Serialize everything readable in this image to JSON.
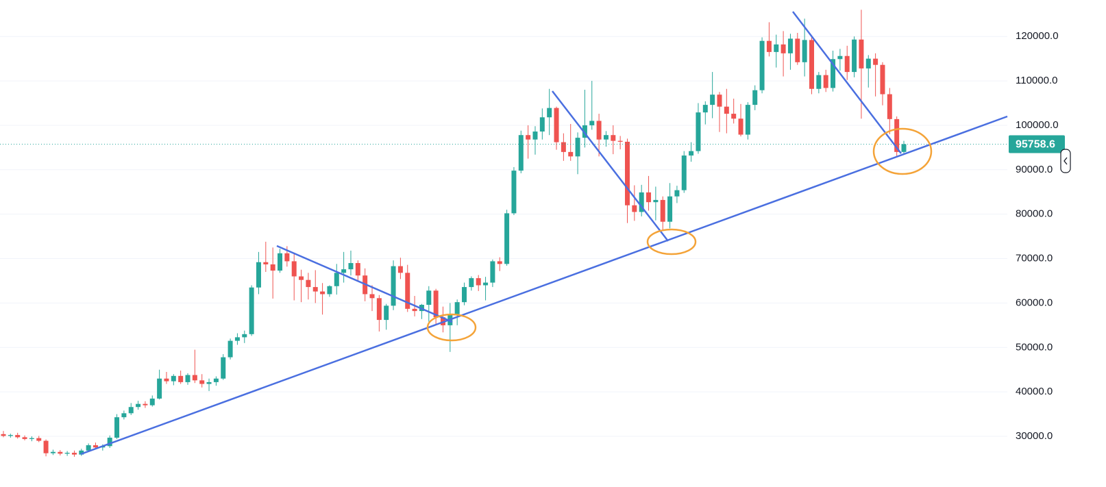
{
  "chart_data": {
    "type": "candlestick",
    "up_color": "#26a69a",
    "down_color": "#ef5350",
    "ylim": [
      18600,
      128200
    ],
    "yticks": [
      {
        "value": 30000,
        "label": "30000.0"
      },
      {
        "value": 40000,
        "label": "40000.0"
      },
      {
        "value": 50000,
        "label": "50000.0"
      },
      {
        "value": 60000,
        "label": "60000.0"
      },
      {
        "value": 70000,
        "label": "70000.0"
      },
      {
        "value": 80000,
        "label": "80000.0"
      },
      {
        "value": 90000,
        "label": "90000.0"
      },
      {
        "value": 100000,
        "label": "100000.0"
      },
      {
        "value": 110000,
        "label": "110000.0"
      },
      {
        "value": 120000,
        "label": "120000.0"
      }
    ],
    "grid": true,
    "ohlc": [
      [
        30500,
        31200,
        29800,
        30100
      ],
      [
        30100,
        30600,
        29700,
        30300
      ],
      [
        30300,
        30800,
        29500,
        29800
      ],
      [
        29800,
        30200,
        29100,
        29400
      ],
      [
        29400,
        30000,
        28900,
        29600
      ],
      [
        29600,
        30100,
        28700,
        29000
      ],
      [
        29000,
        29300,
        25500,
        26200
      ],
      [
        26200,
        27000,
        25800,
        26500
      ],
      [
        26500,
        26900,
        25700,
        26100
      ],
      [
        26100,
        26700,
        25600,
        26300
      ],
      [
        26300,
        26800,
        25400,
        25900
      ],
      [
        25900,
        27200,
        25600,
        26800
      ],
      [
        26800,
        28400,
        26500,
        28000
      ],
      [
        28000,
        28600,
        27200,
        27500
      ],
      [
        27500,
        28200,
        26800,
        27800
      ],
      [
        27800,
        30200,
        27400,
        29700
      ],
      [
        29700,
        35000,
        29400,
        34300
      ],
      [
        34300,
        35800,
        33800,
        35200
      ],
      [
        35200,
        37500,
        34800,
        36600
      ],
      [
        36600,
        38000,
        36000,
        37300
      ],
      [
        37300,
        37900,
        36400,
        37000
      ],
      [
        37000,
        39200,
        36700,
        38500
      ],
      [
        38500,
        45000,
        38300,
        43000
      ],
      [
        43000,
        44500,
        41800,
        42400
      ],
      [
        42400,
        44000,
        41500,
        43600
      ],
      [
        43600,
        44800,
        41800,
        42200
      ],
      [
        42200,
        44200,
        41600,
        43800
      ],
      [
        43800,
        49500,
        42000,
        42600
      ],
      [
        42600,
        44000,
        41000,
        41800
      ],
      [
        41800,
        43000,
        40200,
        42200
      ],
      [
        42200,
        43500,
        41400,
        43000
      ],
      [
        43000,
        48500,
        42700,
        47800
      ],
      [
        47800,
        52000,
        47300,
        51500
      ],
      [
        51500,
        53200,
        50600,
        52300
      ],
      [
        52300,
        53800,
        51000,
        53000
      ],
      [
        53000,
        64000,
        52600,
        63500
      ],
      [
        63500,
        71500,
        62000,
        69200
      ],
      [
        69200,
        73800,
        67000,
        68700
      ],
      [
        68700,
        72500,
        61000,
        67300
      ],
      [
        67300,
        72200,
        66800,
        71200
      ],
      [
        71200,
        72800,
        68200,
        69400
      ],
      [
        69400,
        71000,
        60600,
        66000
      ],
      [
        66000,
        67500,
        60200,
        65200
      ],
      [
        65200,
        66800,
        60800,
        63600
      ],
      [
        63600,
        67400,
        60000,
        62600
      ],
      [
        62600,
        64500,
        57400,
        62000
      ],
      [
        62000,
        64000,
        61400,
        63800
      ],
      [
        63800,
        68800,
        61900,
        66800
      ],
      [
        66800,
        71500,
        64600,
        67600
      ],
      [
        67600,
        71800,
        66200,
        69000
      ],
      [
        69000,
        69600,
        64800,
        66200
      ],
      [
        66200,
        67800,
        60400,
        62000
      ],
      [
        62000,
        64000,
        58200,
        61100
      ],
      [
        61100,
        61800,
        53600,
        56200
      ],
      [
        56200,
        59800,
        54000,
        59400
      ],
      [
        59400,
        69600,
        58400,
        68300
      ],
      [
        68300,
        70200,
        65400,
        66800
      ],
      [
        66800,
        68600,
        58000,
        58700
      ],
      [
        58700,
        61600,
        57000,
        58200
      ],
      [
        58200,
        59800,
        56400,
        59600
      ],
      [
        59600,
        63800,
        55800,
        62800
      ],
      [
        62800,
        63200,
        55300,
        56800
      ],
      [
        56800,
        59200,
        53400,
        55000
      ],
      [
        55000,
        60000,
        49000,
        57500
      ],
      [
        57500,
        60800,
        55000,
        60200
      ],
      [
        60200,
        64600,
        59500,
        63600
      ],
      [
        63600,
        66000,
        62800,
        65600
      ],
      [
        65600,
        66300,
        62700,
        64000
      ],
      [
        64000,
        65900,
        60600,
        64600
      ],
      [
        64600,
        69800,
        63600,
        69400
      ],
      [
        69400,
        70300,
        67200,
        68800
      ],
      [
        68800,
        81000,
        68400,
        80200
      ],
      [
        80200,
        90600,
        79800,
        89800
      ],
      [
        89800,
        98800,
        89200,
        97800
      ],
      [
        97800,
        100000,
        92500,
        96800
      ],
      [
        96800,
        99800,
        93400,
        98600
      ],
      [
        98600,
        103800,
        96800,
        101800
      ],
      [
        101800,
        108200,
        97800,
        103900
      ],
      [
        103900,
        104200,
        94500,
        96200
      ],
      [
        96200,
        98200,
        92000,
        94000
      ],
      [
        94000,
        100300,
        92000,
        93000
      ],
      [
        93000,
        98400,
        89000,
        97200
      ],
      [
        97200,
        108000,
        95000,
        100000
      ],
      [
        100000,
        110000,
        99000,
        101000
      ],
      [
        101000,
        102600,
        93000,
        96800
      ],
      [
        96800,
        98700,
        95200,
        97800
      ],
      [
        97800,
        100000,
        93500,
        96500
      ],
      [
        96500,
        97600,
        94600,
        96300
      ],
      [
        96300,
        97000,
        78000,
        82000
      ],
      [
        82000,
        86500,
        78500,
        80500
      ],
      [
        80500,
        86600,
        79500,
        84900
      ],
      [
        84900,
        88600,
        80800,
        82700
      ],
      [
        82700,
        86200,
        78600,
        83200
      ],
      [
        83200,
        84000,
        76300,
        78300
      ],
      [
        78300,
        87000,
        76800,
        84000
      ],
      [
        84000,
        86400,
        82500,
        85400
      ],
      [
        85400,
        94200,
        84800,
        93200
      ],
      [
        93200,
        96200,
        91800,
        94200
      ],
      [
        94200,
        105000,
        93600,
        102900
      ],
      [
        102900,
        105400,
        100200,
        104600
      ],
      [
        104600,
        112000,
        101600,
        106900
      ],
      [
        106900,
        107500,
        98500,
        104200
      ],
      [
        104200,
        108200,
        98200,
        102600
      ],
      [
        102600,
        106000,
        100400,
        101500
      ],
      [
        101500,
        104800,
        97500,
        97900
      ],
      [
        97900,
        105200,
        96800,
        104600
      ],
      [
        104600,
        109000,
        103400,
        107900
      ],
      [
        107900,
        119800,
        107200,
        119000
      ],
      [
        119000,
        123200,
        115500,
        116500
      ],
      [
        116500,
        120400,
        113000,
        118200
      ],
      [
        118200,
        121200,
        111000,
        116200
      ],
      [
        116200,
        120600,
        112500,
        119500
      ],
      [
        119500,
        120800,
        113600,
        114200
      ],
      [
        114200,
        124000,
        111000,
        119200
      ],
      [
        119200,
        120000,
        107000,
        108200
      ],
      [
        108200,
        112000,
        107200,
        111300
      ],
      [
        111300,
        112500,
        107500,
        108400
      ],
      [
        108400,
        116800,
        107600,
        114900
      ],
      [
        114900,
        117200,
        112300,
        115600
      ],
      [
        115600,
        117900,
        110200,
        112000
      ],
      [
        112000,
        120000,
        110800,
        119300
      ],
      [
        119300,
        126000,
        101500,
        112800
      ],
      [
        112800,
        115800,
        108500,
        115000
      ],
      [
        115000,
        116200,
        106500,
        113600
      ],
      [
        113600,
        114200,
        104500,
        107000
      ],
      [
        107000,
        108400,
        98000,
        101400
      ],
      [
        101400,
        102000,
        93000,
        94000
      ],
      [
        94000,
        96500,
        93400,
        95758.6
      ]
    ]
  }
}
